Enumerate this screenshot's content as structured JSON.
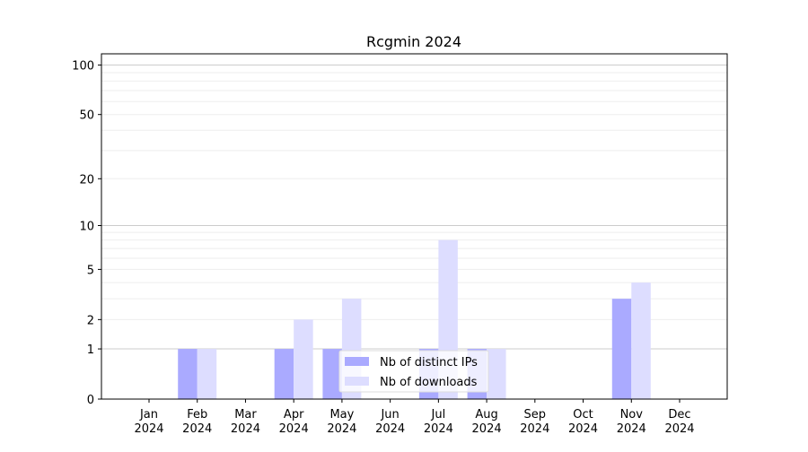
{
  "chart_data": {
    "type": "bar",
    "title": "Rcgmin 2024",
    "xlabel": "",
    "ylabel": "",
    "categories": [
      "Jan\n2024",
      "Feb\n2024",
      "Mar\n2024",
      "Apr\n2024",
      "May\n2024",
      "Jun\n2024",
      "Jul\n2024",
      "Aug\n2024",
      "Sep\n2024",
      "Oct\n2024",
      "Nov\n2024",
      "Dec\n2024"
    ],
    "series": [
      {
        "name": "Nb of distinct IPs",
        "color": "#aaaaff",
        "values": [
          0,
          1,
          0,
          1,
          1,
          0,
          1,
          1,
          0,
          0,
          3,
          0
        ]
      },
      {
        "name": "Nb of downloads",
        "color": "#ddddff",
        "values": [
          0,
          1,
          0,
          2,
          3,
          0,
          8,
          1,
          0,
          0,
          4,
          0
        ]
      }
    ],
    "y_scale": "log(1+y)",
    "yticks": [
      0,
      1,
      2,
      5,
      10,
      20,
      50,
      100
    ],
    "ylim": [
      0,
      117
    ],
    "grid": true,
    "legend": "lower-center"
  }
}
